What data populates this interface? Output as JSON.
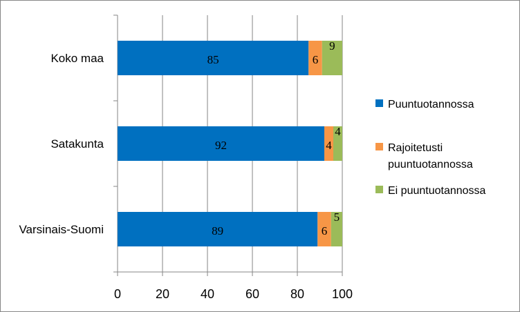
{
  "chart_data": {
    "type": "bar",
    "orientation": "horizontal",
    "stacked": true,
    "categories": [
      "Koko maa",
      "Satakunta",
      "Varsinais-Suomi"
    ],
    "series": [
      {
        "name": "Puuntuotannossa",
        "values": [
          85,
          92,
          89
        ],
        "color": "#0070C0"
      },
      {
        "name": "Rajoitetusti puuntuotannossa",
        "values": [
          6,
          4,
          6
        ],
        "color": "#F79646"
      },
      {
        "name": "Ei puuntuotannossa",
        "values": [
          9,
          4,
          5
        ],
        "color": "#9BBB59"
      }
    ],
    "legend_lines": [
      [
        "Puuntuotannossa"
      ],
      [
        "Rajoitetusti",
        "puuntuotannossa"
      ],
      [
        "Ei puuntuotannossa"
      ]
    ],
    "x_ticks": [
      "0",
      "20",
      "40",
      "60",
      "80",
      "100"
    ],
    "xlim": [
      0,
      100
    ],
    "grid": true,
    "legend_position": "right",
    "title": "",
    "xlabel": "",
    "ylabel": ""
  }
}
